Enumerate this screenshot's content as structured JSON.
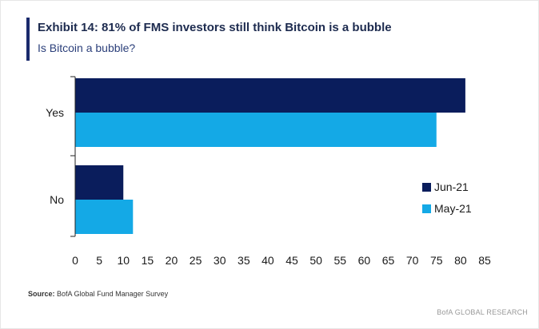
{
  "title": "Exhibit 14: 81% of FMS investors still think Bitcoin is a bubble",
  "subtitle": "Is Bitcoin a bubble?",
  "source_label": "Source:",
  "source_text": "BofA Global Fund Manager Survey",
  "brand": "BofA GLOBAL RESEARCH",
  "colors": {
    "jun21": "#0a1d5c",
    "may21": "#14a9e6",
    "title_bar": "#1a2a6c"
  },
  "chart_data": {
    "type": "bar",
    "orientation": "horizontal",
    "categories": [
      "Yes",
      "No"
    ],
    "series": [
      {
        "name": "Jun-21",
        "values": [
          81,
          10
        ]
      },
      {
        "name": "May-21",
        "values": [
          75,
          12
        ]
      }
    ],
    "xlim": [
      0,
      85
    ],
    "xticks": [
      0,
      5,
      10,
      15,
      20,
      25,
      30,
      35,
      40,
      45,
      50,
      55,
      60,
      65,
      70,
      75,
      80,
      85
    ],
    "legend_position": "right"
  }
}
